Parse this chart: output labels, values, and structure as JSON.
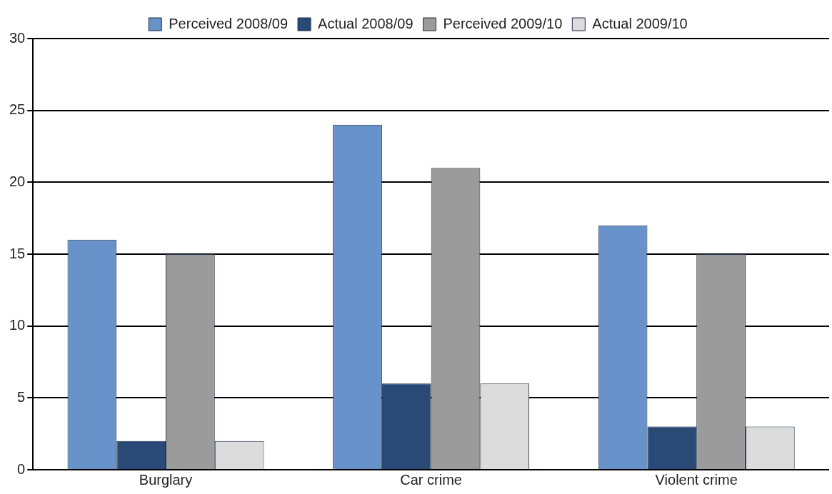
{
  "chart_data": {
    "type": "bar",
    "categories": [
      "Burglary",
      "Car crime",
      "Violent crime"
    ],
    "series": [
      {
        "name": "Perceived 2008/09",
        "color": "#6793ca",
        "values": [
          16,
          24,
          17
        ]
      },
      {
        "name": "Actual 2008/09",
        "color": "#294a77",
        "values": [
          2,
          6,
          3
        ]
      },
      {
        "name": "Perceived 2009/10",
        "color": "#9b9b9b",
        "values": [
          15,
          21,
          15
        ]
      },
      {
        "name": "Actual 2009/10",
        "color": "#dcdcdc",
        "values": [
          2,
          6,
          3
        ]
      }
    ],
    "ylim": [
      0,
      30
    ],
    "yticks": [
      0,
      5,
      10,
      15,
      20,
      25,
      30
    ],
    "grid": "y",
    "legend": "top"
  }
}
